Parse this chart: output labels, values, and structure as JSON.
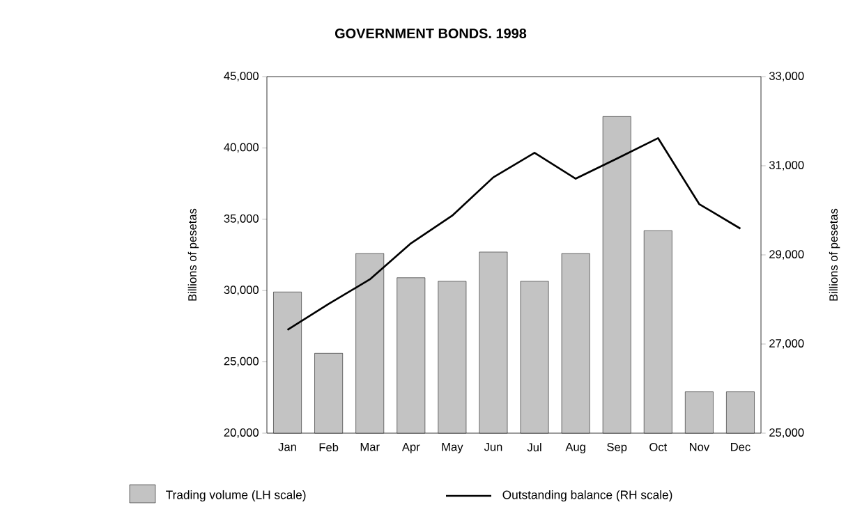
{
  "chart_data": {
    "type": "bar",
    "title": "GOVERNMENT BONDS. 1998",
    "ylabel": "Billions of pesetas",
    "y2label": "Billions of pesetas",
    "categories": [
      "Jan",
      "Feb",
      "Mar",
      "Apr",
      "May",
      "Jun",
      "Jul",
      "Aug",
      "Sep",
      "Oct",
      "Nov",
      "Dec"
    ],
    "series": [
      {
        "name": "Trading volume (LH scale)",
        "color": "#c3c3c3",
        "values": [
          29900,
          25600,
          32600,
          30900,
          30650,
          32700,
          30650,
          32600,
          42200,
          34200,
          22900,
          22900
        ]
      },
      {
        "name": "Outstanding balance (RH scale)",
        "type": "line",
        "axis": "y2",
        "color": "#000000",
        "values": [
          27320,
          27900,
          28450,
          29260,
          29880,
          30740,
          31290,
          30710,
          31160,
          31620,
          30140,
          29590
        ]
      }
    ],
    "ylim": [
      20000,
      45000
    ],
    "yticks": [
      {
        "value": 20000,
        "label": "20,000"
      },
      {
        "value": 25000,
        "label": "25,000"
      },
      {
        "value": 30000,
        "label": "30,000"
      },
      {
        "value": 35000,
        "label": "35,000"
      },
      {
        "value": 40000,
        "label": "40,000"
      },
      {
        "value": 45000,
        "label": "45,000"
      }
    ],
    "y2lim": [
      25000,
      33000
    ],
    "y2ticks": [
      {
        "value": 25000,
        "label": "25,000"
      },
      {
        "value": 27000,
        "label": "27,000"
      },
      {
        "value": 29000,
        "label": "29,000"
      },
      {
        "value": 31000,
        "label": "31,000"
      },
      {
        "value": 33000,
        "label": "33,000"
      }
    ],
    "legend": "bottom",
    "grid": false
  }
}
